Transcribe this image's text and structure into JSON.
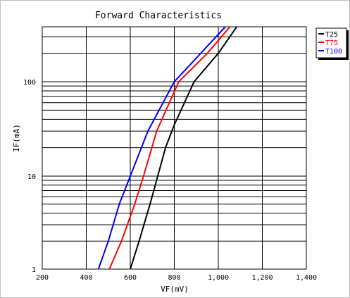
{
  "chart_data": {
    "type": "line",
    "title": "Forward Characteristics",
    "xlabel": "VF(mV)",
    "ylabel": "IF(mA)",
    "xlim": [
      200,
      1400
    ],
    "ylim": [
      1,
      400
    ],
    "y_scale": "log",
    "grid": true,
    "legend_position": "top-right (outside plot)",
    "x_ticks": [
      "200",
      "400",
      "600",
      "800",
      "1,000",
      "1,200",
      "1,400"
    ],
    "y_ticks": [
      "1",
      "10",
      "100"
    ],
    "series": [
      {
        "name": "T25",
        "color": "#000000",
        "x": [
          600,
          640,
          690,
          760,
          800,
          890,
          1000,
          1090
        ],
        "y": [
          1,
          2,
          5,
          20,
          35,
          100,
          200,
          400
        ]
      },
      {
        "name": "T75",
        "color": "#ff0000",
        "x": [
          505,
          560,
          620,
          660,
          720,
          820,
          950,
          1060
        ],
        "y": [
          1,
          2,
          5,
          10,
          30,
          100,
          200,
          400
        ]
      },
      {
        "name": "T100",
        "color": "#0000ff",
        "x": [
          455,
          500,
          550,
          600,
          680,
          800,
          920,
          1040
        ],
        "y": [
          1,
          2,
          5,
          10,
          30,
          100,
          200,
          400
        ]
      }
    ]
  }
}
